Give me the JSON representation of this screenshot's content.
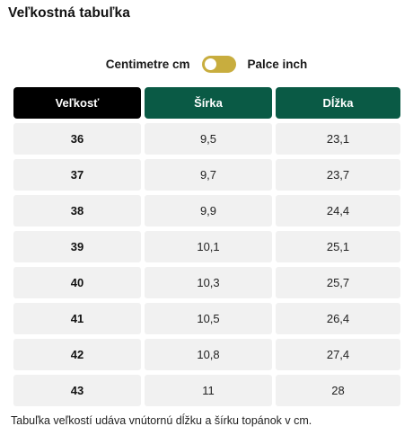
{
  "title": "Veľkostná tabuľka",
  "unit_toggle": {
    "left_label": "Centimetre cm",
    "right_label": "Palce inch",
    "selected": "cm"
  },
  "table": {
    "headers": [
      "Veľkosť",
      "Šírka",
      "Dĺžka"
    ],
    "rows": [
      [
        "36",
        "9,5",
        "23,1"
      ],
      [
        "37",
        "9,7",
        "23,7"
      ],
      [
        "38",
        "9,9",
        "24,4"
      ],
      [
        "39",
        "10,1",
        "25,1"
      ],
      [
        "40",
        "10,3",
        "25,7"
      ],
      [
        "41",
        "10,5",
        "26,4"
      ],
      [
        "42",
        "10,8",
        "27,4"
      ],
      [
        "43",
        "11",
        "28"
      ]
    ]
  },
  "note": "Tabuľka veľkostí udáva vnútornú dĺžku a šírku topánok v cm.",
  "colors": {
    "header_dark": "#000000",
    "header_green": "#0a5a45",
    "toggle": "#c8ad3e",
    "cell_bg": "#f1f1f1"
  }
}
